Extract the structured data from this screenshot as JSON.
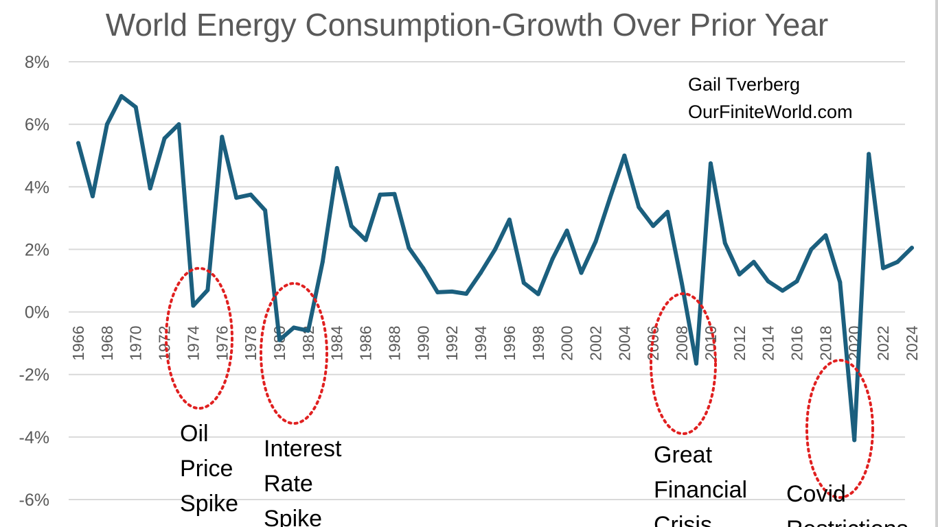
{
  "chart_data": {
    "type": "line",
    "title": "World Energy Consumption-Growth Over Prior Year",
    "credit": [
      "Gail Tverberg",
      "OurFiniteWorld.com"
    ],
    "xlabel": "",
    "ylabel": "",
    "ylim": [
      -6,
      8
    ],
    "yticks": [
      -6,
      -4,
      -2,
      0,
      2,
      4,
      6,
      8
    ],
    "ytick_labels": [
      "-6%",
      "-4%",
      "-2%",
      "0%",
      "2%",
      "4%",
      "6%",
      "8%"
    ],
    "x": [
      1966,
      1967,
      1968,
      1969,
      1970,
      1971,
      1972,
      1973,
      1974,
      1975,
      1976,
      1977,
      1978,
      1979,
      1980,
      1981,
      1982,
      1983,
      1984,
      1985,
      1986,
      1987,
      1988,
      1989,
      1990,
      1991,
      1992,
      1993,
      1994,
      1995,
      1996,
      1997,
      1998,
      1999,
      2000,
      2001,
      2002,
      2003,
      2004,
      2005,
      2006,
      2007,
      2008,
      2009,
      2010,
      2011,
      2012,
      2013,
      2014,
      2015,
      2016,
      2017,
      2018,
      2019,
      2020,
      2021,
      2022,
      2023,
      2024
    ],
    "xtick_labels": [
      "1966",
      "1968",
      "1970",
      "1972",
      "1974",
      "1976",
      "1978",
      "1980",
      "1982",
      "1984",
      "1986",
      "1988",
      "1990",
      "1992",
      "1994",
      "1996",
      "1998",
      "2000",
      "2002",
      "2004",
      "2006",
      "2008",
      "2010",
      "2012",
      "2014",
      "2016",
      "2018",
      "2020",
      "2022",
      "2024"
    ],
    "grid": true,
    "series": [
      {
        "values": [
          5.4,
          3.7,
          6.0,
          6.9,
          6.55,
          3.95,
          5.55,
          6.0,
          0.2,
          0.7,
          5.6,
          3.65,
          3.75,
          3.25,
          -0.9,
          -0.5,
          -0.6,
          1.6,
          4.6,
          2.75,
          2.3,
          3.75,
          3.77,
          2.05,
          1.4,
          0.63,
          0.65,
          0.58,
          1.25,
          2.0,
          2.95,
          0.93,
          0.57,
          1.7,
          2.6,
          1.25,
          2.25,
          3.65,
          5.0,
          3.35,
          2.75,
          3.2,
          0.9,
          -1.65,
          4.75,
          2.2,
          1.2,
          1.6,
          0.98,
          0.68,
          0.98,
          2.0,
          2.45,
          0.95,
          -4.1,
          5.05,
          1.4,
          1.6,
          2.05
        ]
      }
    ],
    "annotations": [
      {
        "lines": [
          "Oil",
          "Price",
          "Spike"
        ],
        "year": 1975
      },
      {
        "lines": [
          "Interest",
          "Rate",
          "Spike"
        ],
        "year": 1981.5
      },
      {
        "lines": [
          "Great",
          "Financial",
          "Crisis"
        ],
        "year": 2009
      },
      {
        "lines": [
          "Covid",
          "Restrictions"
        ],
        "year": 2020
      }
    ],
    "colors": {
      "series": "#1b5f7e",
      "ellipse": "#e02020",
      "grid": "#d9d9d9",
      "axis_text": "#595959"
    }
  }
}
